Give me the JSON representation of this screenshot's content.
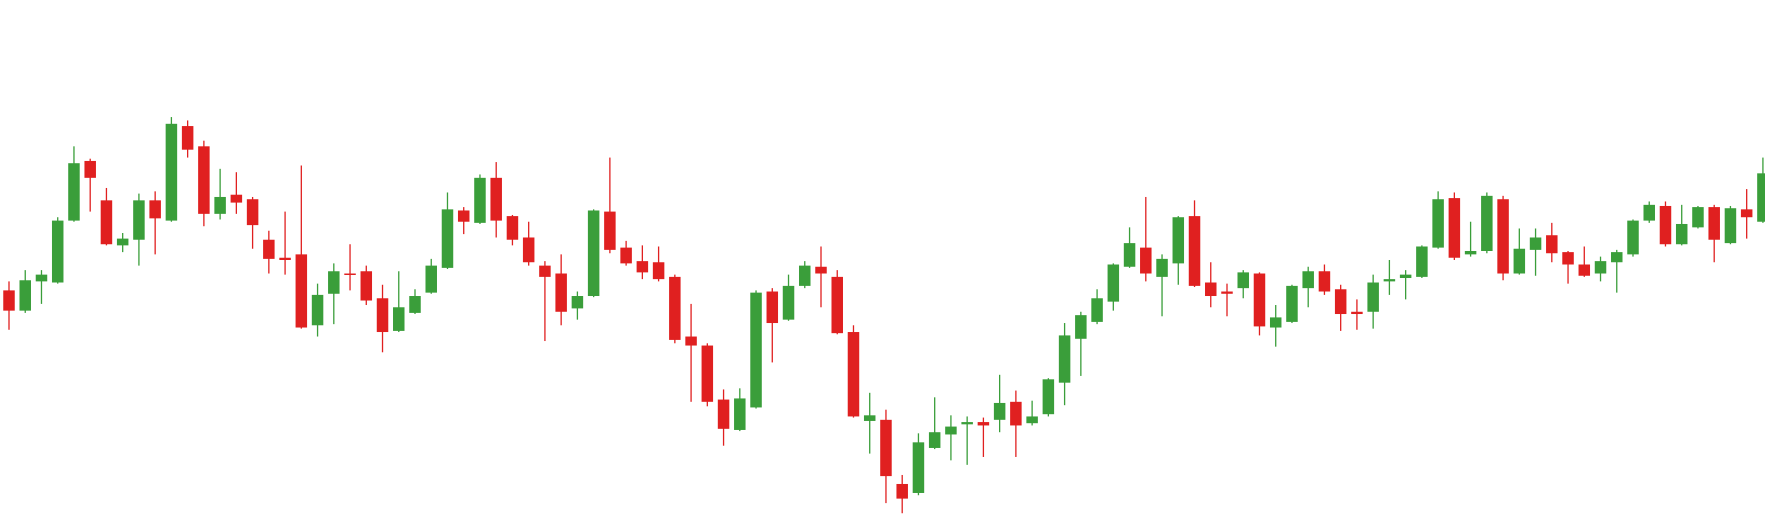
{
  "chart_data": {
    "type": "candlestick",
    "up_color": "#3a9e3a",
    "down_color": "#e02020",
    "ylim": [
      0,
      470
    ],
    "open": [
      212,
      194,
      220,
      219,
      274,
      327,
      292,
      252,
      257,
      292,
      274,
      358,
      340,
      280,
      297,
      293,
      257,
      241,
      244,
      181,
      209,
      227,
      229,
      205,
      176,
      192,
      210,
      232,
      283,
      272,
      312,
      278,
      259,
      234,
      227,
      196,
      207,
      282,
      250,
      238,
      237,
      224,
      171,
      163,
      115,
      88,
      108,
      211,
      186,
      216,
      233,
      224,
      175,
      96,
      97,
      40,
      32,
      72,
      84,
      93,
      95,
      97,
      113,
      94,
      102,
      130,
      169,
      184,
      202,
      233,
      250,
      224,
      236,
      278,
      219,
      211,
      214,
      227,
      179,
      184,
      214,
      229,
      213,
      193,
      193,
      220,
      223,
      224,
      250,
      294,
      244,
      247,
      293,
      227,
      248,
      261,
      246,
      235,
      227,
      237,
      244,
      274,
      287,
      253,
      268,
      286,
      254,
      284,
      273
    ],
    "high": [
      220,
      230,
      230,
      277,
      340,
      329,
      303,
      263,
      298,
      300,
      366,
      363,
      345,
      320,
      317,
      295,
      265,
      282,
      323,
      218,
      236,
      253,
      234,
      217,
      229,
      213,
      240,
      299,
      286,
      315,
      326,
      279,
      273,
      238,
      244,
      211,
      284,
      330,
      256,
      252,
      251,
      226,
      200,
      165,
      124,
      125,
      212,
      214,
      226,
      238,
      251,
      230,
      181,
      121,
      106,
      48,
      85,
      117,
      101,
      100,
      99,
      137,
      123,
      114,
      134,
      183,
      193,
      213,
      236,
      268,
      295,
      244,
      278,
      292,
      237,
      218,
      230,
      228,
      199,
      217,
      233,
      235,
      217,
      204,
      226,
      239,
      230,
      252,
      300,
      299,
      273,
      299,
      296,
      267,
      267,
      272,
      247,
      251,
      242,
      248,
      275,
      291,
      291,
      288,
      287,
      288,
      287,
      302,
      330
    ],
    "low": [
      177,
      192,
      200,
      218,
      273,
      282,
      252,
      246,
      234,
      244,
      273,
      330,
      269,
      275,
      280,
      249,
      227,
      226,
      178,
      171,
      182,
      212,
      199,
      157,
      175,
      191,
      209,
      231,
      262,
      271,
      259,
      252,
      234,
      167,
      181,
      186,
      206,
      245,
      234,
      222,
      220,
      165,
      113,
      109,
      74,
      87,
      107,
      148,
      185,
      214,
      197,
      173,
      99,
      67,
      23,
      14,
      30,
      71,
      61,
      57,
      64,
      86,
      64,
      92,
      100,
      110,
      136,
      182,
      194,
      232,
      220,
      189,
      217,
      215,
      197,
      189,
      205,
      172,
      162,
      183,
      197,
      208,
      176,
      177,
      178,
      208,
      204,
      223,
      249,
      239,
      242,
      245,
      221,
      226,
      225,
      237,
      218,
      224,
      220,
      210,
      242,
      272,
      251,
      252,
      267,
      237,
      253,
      258,
      272
    ],
    "close": [
      194,
      221,
      226,
      274,
      325,
      312,
      253,
      258,
      292,
      276,
      360,
      337,
      280,
      295,
      290,
      270,
      240,
      239,
      179,
      208,
      229,
      227,
      203,
      175,
      197,
      207,
      234,
      284,
      273,
      312,
      274,
      257,
      237,
      224,
      193,
      207,
      283,
      248,
      236,
      228,
      222,
      168,
      163,
      113,
      89,
      116,
      210,
      183,
      216,
      234,
      227,
      174,
      100,
      101,
      47,
      27,
      77,
      86,
      91,
      95,
      92,
      112,
      92,
      100,
      133,
      172,
      190,
      205,
      235,
      254,
      227,
      240,
      277,
      216,
      207,
      209,
      228,
      180,
      188,
      216,
      229,
      211,
      191,
      191,
      219,
      222,
      226,
      251,
      293,
      241,
      247,
      296,
      227,
      249,
      259,
      245,
      235,
      225,
      238,
      246,
      274,
      288,
      253,
      271,
      286,
      257,
      285,
      277,
      316
    ]
  }
}
